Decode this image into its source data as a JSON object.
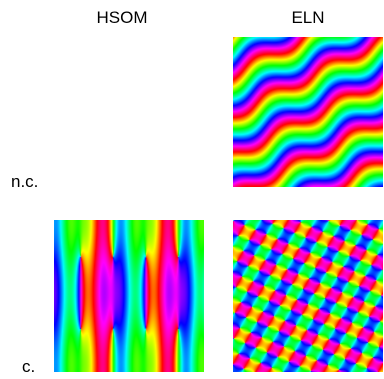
{
  "figure": {
    "columns": [
      "HSOM",
      "ELN"
    ],
    "rows": [
      "n.c.",
      "c."
    ],
    "panels": [
      {
        "row": "n.c.",
        "column": "HSOM",
        "present": false
      },
      {
        "row": "n.c.",
        "column": "ELN",
        "present": true,
        "pattern": "diagonal-stripes"
      },
      {
        "row": "c.",
        "column": "HSOM",
        "present": true,
        "pattern": "vertical-pinwheels"
      },
      {
        "row": "c.",
        "column": "ELN",
        "present": true,
        "pattern": "rhombic-lattice"
      }
    ],
    "colormap": "hue-cyclic"
  }
}
